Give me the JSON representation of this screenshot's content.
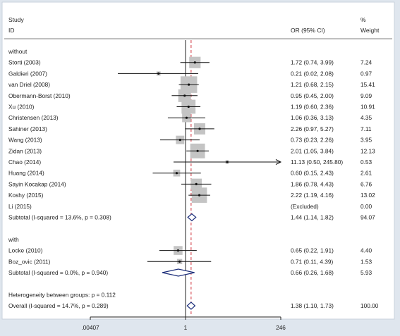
{
  "chart_data": {
    "type": "forest",
    "x_scale": "log",
    "xlim": [
      0.00407,
      246
    ],
    "x_ticks": [
      ".00407",
      "1",
      "246"
    ],
    "null_line": 1,
    "overall_line": 1.38,
    "headers": {
      "study": "Study",
      "id": "ID",
      "estimate": "OR (95% CI)",
      "weight_top": "%",
      "weight": "Weight"
    },
    "rows": [
      {
        "kind": "group",
        "label": "without"
      },
      {
        "kind": "study",
        "label": "Storti (2003)",
        "or": 1.72,
        "lo": 0.74,
        "hi": 3.99,
        "text": "1.72 (0.74, 3.99)",
        "weight": 7.24,
        "weight_text": "7.24"
      },
      {
        "kind": "study",
        "label": "Galdieri (2007)",
        "or": 0.21,
        "lo": 0.02,
        "hi": 2.08,
        "text": "0.21 (0.02, 2.08)",
        "weight": 0.97,
        "weight_text": "0.97"
      },
      {
        "kind": "study",
        "label": "van Driel (2008)",
        "or": 1.21,
        "lo": 0.68,
        "hi": 2.15,
        "text": "1.21 (0.68, 2.15)",
        "weight": 15.41,
        "weight_text": "15.41"
      },
      {
        "kind": "study",
        "label": "Obermann-Borst (2010)",
        "or": 0.95,
        "lo": 0.45,
        "hi": 2.0,
        "text": "0.95 (0.45, 2.00)",
        "weight": 9.09,
        "weight_text": "9.09"
      },
      {
        "kind": "study",
        "label": "Xu (2010)",
        "or": 1.19,
        "lo": 0.6,
        "hi": 2.36,
        "text": "1.19 (0.60, 2.36)",
        "weight": 10.91,
        "weight_text": "10.91"
      },
      {
        "kind": "study",
        "label": "Christensen (2013)",
        "or": 1.06,
        "lo": 0.36,
        "hi": 3.13,
        "text": "1.06 (0.36, 3.13)",
        "weight": 4.35,
        "weight_text": "4.35"
      },
      {
        "kind": "study",
        "label": "Sahiner (2013)",
        "or": 2.26,
        "lo": 0.97,
        "hi": 5.27,
        "text": "2.26 (0.97, 5.27)",
        "weight": 7.11,
        "weight_text": "7.11"
      },
      {
        "kind": "study",
        "label": "Wang (2013)",
        "or": 0.73,
        "lo": 0.23,
        "hi": 2.26,
        "text": "0.73 (0.23, 2.26)",
        "weight": 3.95,
        "weight_text": "3.95"
      },
      {
        "kind": "study",
        "label": "Zidan (2013)",
        "or": 2.01,
        "lo": 1.05,
        "hi": 3.84,
        "text": "2.01 (1.05, 3.84)",
        "weight": 12.13,
        "weight_text": "12.13"
      },
      {
        "kind": "study",
        "label": "Chao (2014)",
        "or": 11.13,
        "lo": 0.5,
        "hi": 245.8,
        "text": "11.13 (0.50, 245.80)",
        "weight": 0.53,
        "weight_text": "0.53",
        "arrow": true
      },
      {
        "kind": "study",
        "label": "Huang (2014)",
        "or": 0.6,
        "lo": 0.15,
        "hi": 2.43,
        "text": "0.60 (0.15, 2.43)",
        "weight": 2.61,
        "weight_text": "2.61"
      },
      {
        "kind": "study",
        "label": "Sayin Kocakap (2014)",
        "or": 1.86,
        "lo": 0.78,
        "hi": 4.43,
        "text": "1.86 (0.78, 4.43)",
        "weight": 6.76,
        "weight_text": "6.76"
      },
      {
        "kind": "study",
        "label": "Koshy (2015)",
        "or": 2.22,
        "lo": 1.19,
        "hi": 4.16,
        "text": "2.22 (1.19, 4.16)",
        "weight": 13.02,
        "weight_text": "13.02"
      },
      {
        "kind": "study",
        "label": "Li (2015)",
        "text": "(Excluded)",
        "weight": 0.0,
        "weight_text": "0.00",
        "excluded": true
      },
      {
        "kind": "subtotal",
        "label": "Subtotal  (I-squared = 13.6%, p = 0.308)",
        "or": 1.44,
        "lo": 1.14,
        "hi": 1.82,
        "text": "1.44 (1.14, 1.82)",
        "weight_text": "94.07"
      },
      {
        "kind": "blank"
      },
      {
        "kind": "group",
        "label": "with"
      },
      {
        "kind": "study",
        "label": "Locke (2010)",
        "or": 0.65,
        "lo": 0.22,
        "hi": 1.91,
        "text": "0.65 (0.22, 1.91)",
        "weight": 4.4,
        "weight_text": "4.40"
      },
      {
        "kind": "study",
        "label": "Boz_ovic  (2011)",
        "or": 0.71,
        "lo": 0.11,
        "hi": 4.39,
        "text": "0.71 (0.11, 4.39)",
        "weight": 1.53,
        "weight_text": "1.53"
      },
      {
        "kind": "subtotal",
        "label": "Subtotal  (I-squared = 0.0%, p = 0.940)",
        "or": 0.66,
        "lo": 0.26,
        "hi": 1.68,
        "text": "0.66 (0.26, 1.68)",
        "weight_text": "5.93"
      },
      {
        "kind": "blank"
      },
      {
        "kind": "note",
        "label": "Heterogeneity between groups: p = 0.112"
      },
      {
        "kind": "overall",
        "label": "Overall  (I-squared = 14.7%, p = 0.289)",
        "or": 1.38,
        "lo": 1.1,
        "hi": 1.73,
        "text": "1.38 (1.10, 1.73)",
        "weight_text": "100.00"
      }
    ]
  }
}
